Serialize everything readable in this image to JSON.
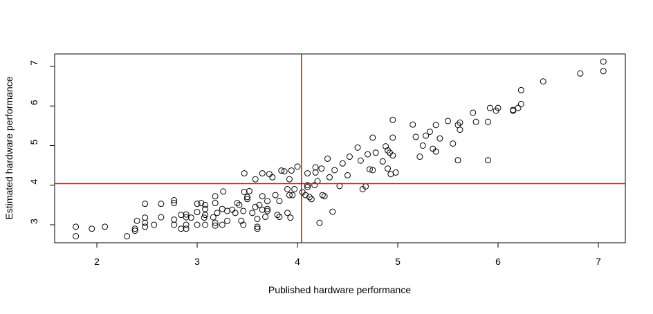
{
  "chart_data": {
    "type": "scatter",
    "x_label": "Published hardware performance",
    "y_label": "Estimated hardware performance",
    "xlim": [
      1.579,
      7.269
    ],
    "ylim": [
      2.546,
      7.314
    ],
    "xticks": [
      2,
      3,
      4,
      5,
      6,
      7
    ],
    "yticks": [
      3,
      4,
      5,
      6,
      7
    ],
    "color": "#000000",
    "ref_color": "#ff0000",
    "vlines": [
      4.04
    ],
    "hlines": [
      4.04
    ],
    "x": [
      1.79,
      1.79,
      1.95,
      2.08,
      2.3,
      2.38,
      2.38,
      2.4,
      2.48,
      2.48,
      2.48,
      2.48,
      2.57,
      2.64,
      2.64,
      2.77,
      2.77,
      2.77,
      2.77,
      2.84,
      2.84,
      2.89,
      2.89,
      2.89,
      2.89,
      2.94,
      3.0,
      3.0,
      3.0,
      3.04,
      3.07,
      3.08,
      3.08,
      3.08,
      3.08,
      3.16,
      3.18,
      3.18,
      3.18,
      3.18,
      3.2,
      3.25,
      3.25,
      3.26,
      3.3,
      3.3,
      3.35,
      3.38,
      3.4,
      3.42,
      3.44,
      3.46,
      3.46,
      3.47,
      3.47,
      3.5,
      3.5,
      3.52,
      3.55,
      3.58,
      3.58,
      3.6,
      3.6,
      3.6,
      3.62,
      3.65,
      3.65,
      3.65,
      3.68,
      3.7,
      3.7,
      3.7,
      3.72,
      3.75,
      3.78,
      3.8,
      3.82,
      3.82,
      3.84,
      3.87,
      3.9,
      3.9,
      3.92,
      3.92,
      3.93,
      3.94,
      3.95,
      3.97,
      4.0,
      4.05,
      4.08,
      4.1,
      4.1,
      4.1,
      4.12,
      4.14,
      4.17,
      4.18,
      4.18,
      4.2,
      4.22,
      4.24,
      4.25,
      4.27,
      4.3,
      4.32,
      4.35,
      4.37,
      4.42,
      4.45,
      4.5,
      4.52,
      4.6,
      4.63,
      4.65,
      4.68,
      4.7,
      4.72,
      4.75,
      4.75,
      4.78,
      4.85,
      4.88,
      4.9,
      4.9,
      4.92,
      4.93,
      4.95,
      4.95,
      4.95,
      4.98,
      5.15,
      5.18,
      5.22,
      5.25,
      5.28,
      5.32,
      5.35,
      5.38,
      5.38,
      5.42,
      5.5,
      5.55,
      5.6,
      5.6,
      5.62,
      5.62,
      5.75,
      5.78,
      5.9,
      5.9,
      5.92,
      5.98,
      6.0,
      6.15,
      6.15,
      6.2,
      6.23,
      6.23,
      6.45,
      6.82,
      7.05,
      7.05
    ],
    "y": [
      2.95,
      2.71,
      2.9,
      2.95,
      2.71,
      2.85,
      2.9,
      3.1,
      2.95,
      3.05,
      3.18,
      3.53,
      3.0,
      3.19,
      3.53,
      3.0,
      3.13,
      3.55,
      3.62,
      2.9,
      3.25,
      2.9,
      3.0,
      3.19,
      3.26,
      3.18,
      3.0,
      3.32,
      3.53,
      3.55,
      3.18,
      3.25,
      3.4,
      3.5,
      3.0,
      3.19,
      2.98,
      3.05,
      3.55,
      3.72,
      3.3,
      3.0,
      3.4,
      3.84,
      3.1,
      3.35,
      3.38,
      3.3,
      3.55,
      3.5,
      3.1,
      3.0,
      3.35,
      3.83,
      4.3,
      3.7,
      3.65,
      3.85,
      3.3,
      3.45,
      4.15,
      2.95,
      2.9,
      3.15,
      3.5,
      3.38,
      3.72,
      4.3,
      3.2,
      3.35,
      3.4,
      3.6,
      4.28,
      4.2,
      3.75,
      3.25,
      3.2,
      3.6,
      4.37,
      4.35,
      3.3,
      3.9,
      3.75,
      4.15,
      3.18,
      4.37,
      3.75,
      3.9,
      4.47,
      3.82,
      3.75,
      3.95,
      4.0,
      4.3,
      3.7,
      3.65,
      4.0,
      4.45,
      4.32,
      4.1,
      3.05,
      4.42,
      3.75,
      3.72,
      4.67,
      4.2,
      3.33,
      4.38,
      3.98,
      4.55,
      4.25,
      4.72,
      4.95,
      4.62,
      3.9,
      3.97,
      4.78,
      4.4,
      4.38,
      5.2,
      4.82,
      4.6,
      4.98,
      4.88,
      4.42,
      4.82,
      4.28,
      5.65,
      5.2,
      4.75,
      4.32,
      5.53,
      5.22,
      4.72,
      5.0,
      5.25,
      5.35,
      4.92,
      4.85,
      5.52,
      5.18,
      5.62,
      5.05,
      4.63,
      5.52,
      5.4,
      5.58,
      5.83,
      5.6,
      4.63,
      5.6,
      5.95,
      5.88,
      5.95,
      5.88,
      5.9,
      5.95,
      6.05,
      6.4,
      6.62,
      6.82,
      6.88,
      7.12
    ]
  }
}
